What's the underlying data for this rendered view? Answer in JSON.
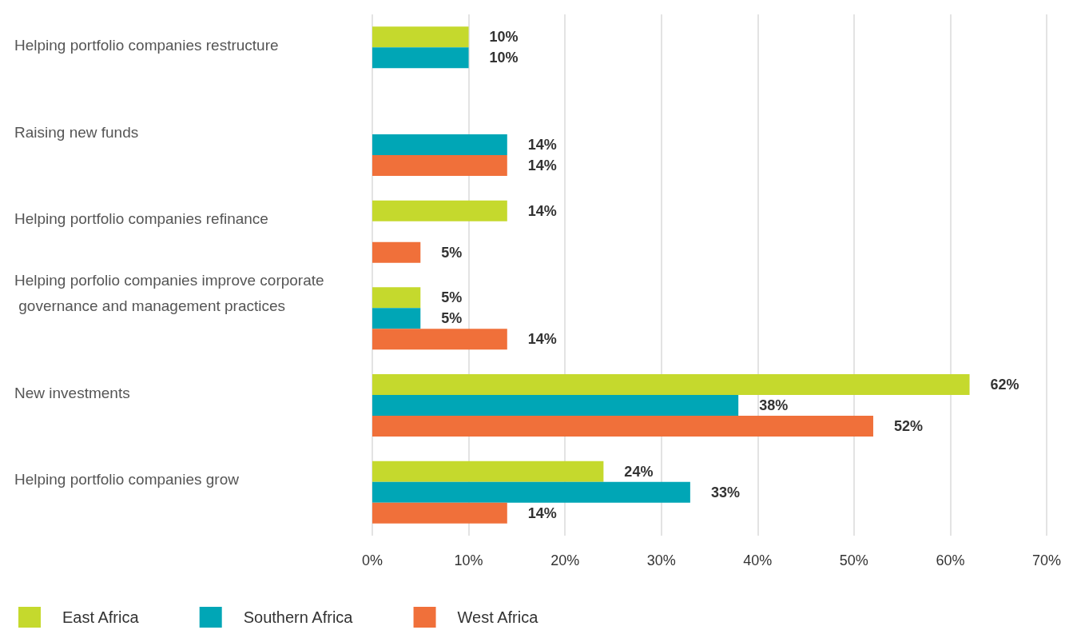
{
  "chart_data": {
    "type": "bar",
    "orientation": "horizontal",
    "categories": [
      "Helping portfolio companies restructure",
      "Raising new funds",
      "Helping portfolio companies refinance",
      "Helping porfolio companies improve corporate governance and management practices",
      "New investments",
      "Helping portfolio companies grow"
    ],
    "series": [
      {
        "name": "East Africa",
        "color": "#c5d92d",
        "values": [
          10,
          null,
          14,
          5,
          62,
          24
        ],
        "value_labels": [
          "10%",
          null,
          "14%",
          "5%",
          "62%",
          "24%"
        ]
      },
      {
        "name": "Southern Africa",
        "color": "#00a6b6",
        "values": [
          10,
          14,
          null,
          5,
          38,
          33
        ],
        "value_labels": [
          "10%",
          "14%",
          null,
          "5%",
          "38%",
          "33%"
        ]
      },
      {
        "name": "West Africa",
        "color": "#f0703a",
        "values": [
          null,
          14,
          5,
          14,
          52,
          14
        ],
        "value_labels": [
          null,
          "14%",
          "5%",
          "14%",
          "52%",
          "14%"
        ]
      }
    ],
    "xlim": [
      0,
      70
    ],
    "xticks": [
      {
        "value": 0,
        "label": "0%"
      },
      {
        "value": 10,
        "label": "10%"
      },
      {
        "value": 20,
        "label": "20%"
      },
      {
        "value": 30,
        "label": "30%"
      },
      {
        "value": 40,
        "label": "40%"
      },
      {
        "value": 50,
        "label": "50%"
      },
      {
        "value": 60,
        "label": "60%"
      },
      {
        "value": 70,
        "label": "70%"
      }
    ],
    "grid": "x",
    "legend": "bottom left"
  }
}
